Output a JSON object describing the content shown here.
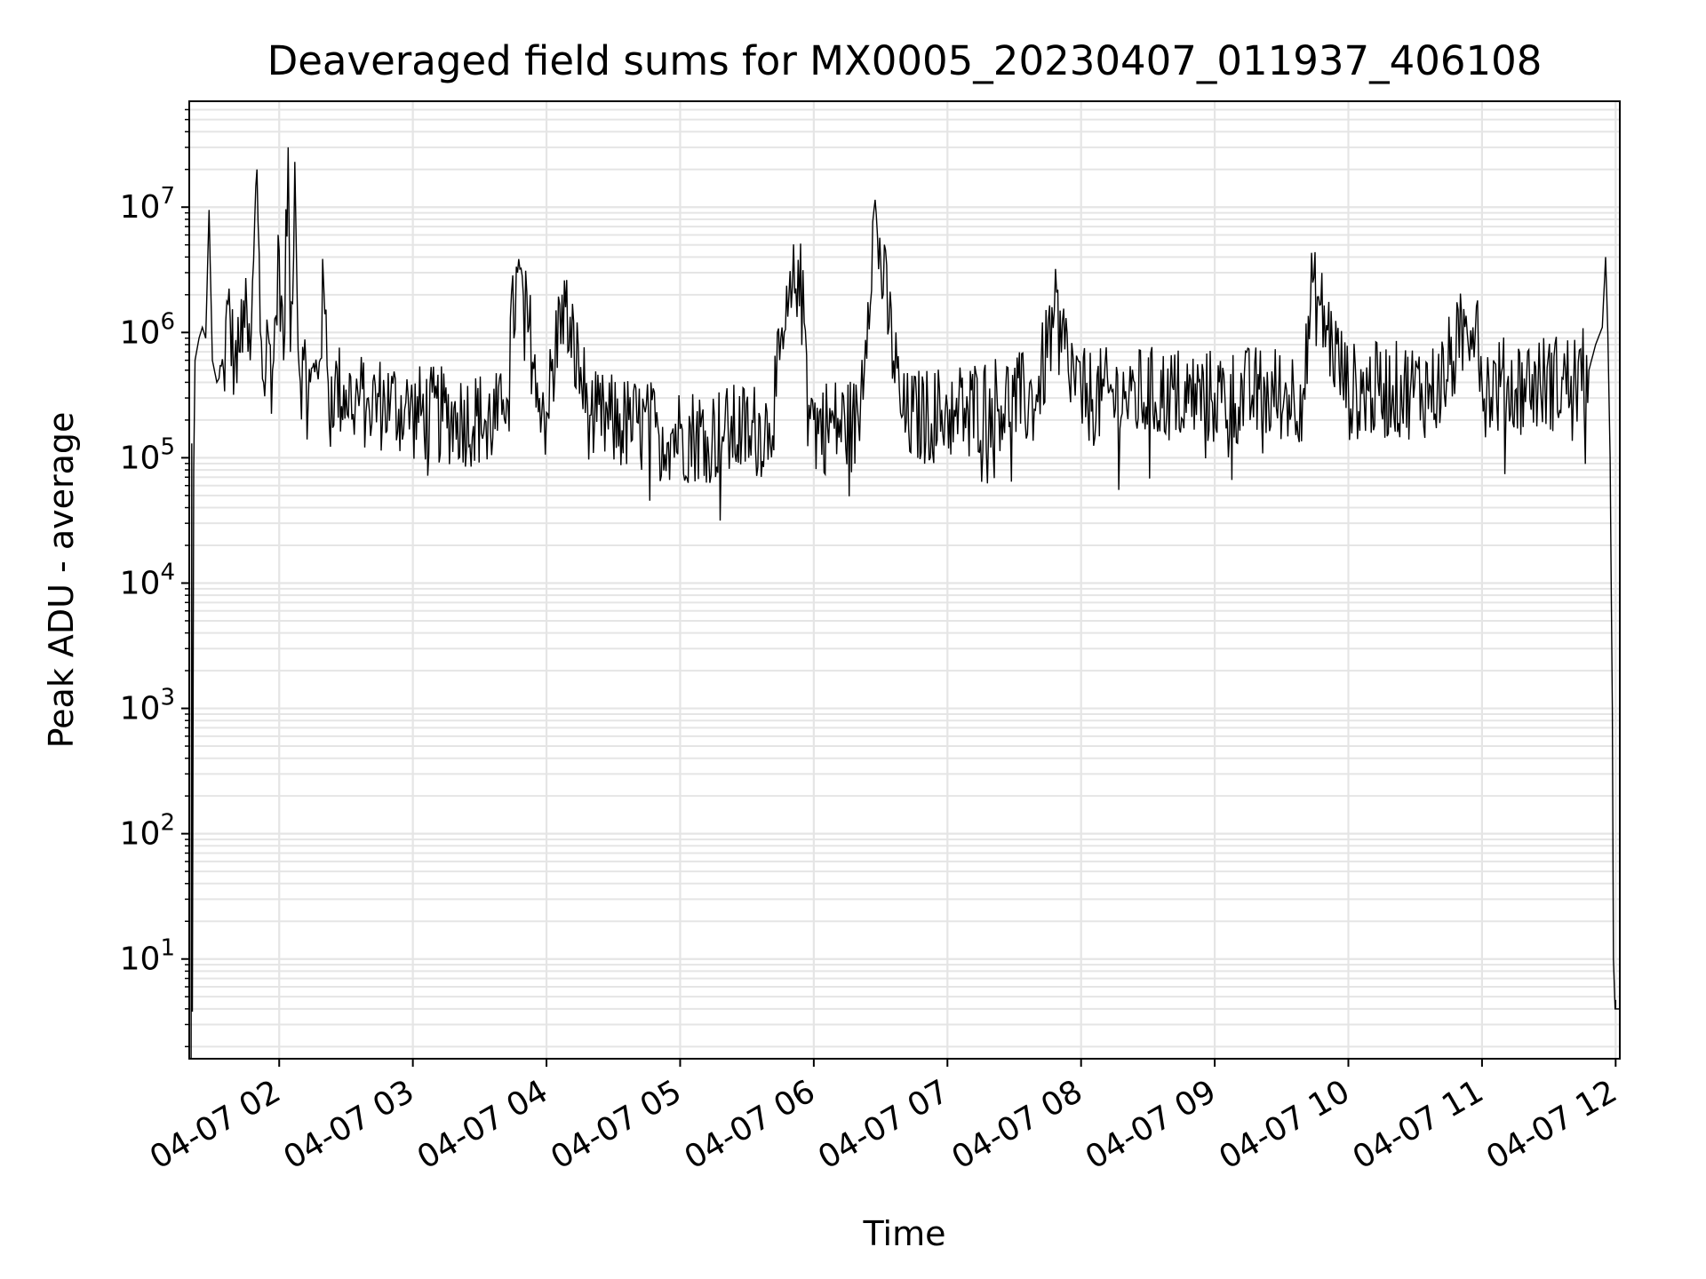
{
  "chart_data": {
    "type": "line",
    "title": "Deaveraged field sums for MX0005_20230407_011937_406108",
    "xlabel": "Time",
    "ylabel": "Peak ADU - average",
    "x_tick_labels": [
      "04-07 02",
      "04-07 03",
      "04-07 04",
      "04-07 05",
      "04-07 06",
      "04-07 07",
      "04-07 08",
      "04-07 09",
      "04-07 10",
      "04-07 11",
      "04-07 12"
    ],
    "x_range": [
      "2023-04-07 01:19:37",
      "2023-04-07 12:01:52"
    ],
    "y_scale": "log",
    "ylim": [
      1.6,
      70000000
    ],
    "y_ticks": [
      {
        "base": "10",
        "exp": "1",
        "value": 10
      },
      {
        "base": "10",
        "exp": "2",
        "value": 100
      },
      {
        "base": "10",
        "exp": "3",
        "value": 1000
      },
      {
        "base": "10",
        "exp": "4",
        "value": 10000
      },
      {
        "base": "10",
        "exp": "5",
        "value": 100000
      },
      {
        "base": "10",
        "exp": "6",
        "value": 1000000
      },
      {
        "base": "10",
        "exp": "7",
        "value": 10000000
      }
    ],
    "grid": true,
    "line_color": "#000000",
    "grid_color": "#e5e5e5",
    "series": [
      {
        "x": [
          "2023-04-07 01:20:27",
          "2023-04-07 01:20:45",
          "2023-04-07 01:21:00",
          "2023-04-07 01:21:36",
          "2023-04-07 01:22:12",
          "2023-04-07 01:24:00",
          "2023-04-07 01:25:30",
          "2023-04-07 01:27:00",
          "2023-04-07 01:28:30",
          "2023-04-07 01:30:00",
          "2023-04-07 01:32:00",
          "2023-04-07 01:35:00",
          "2023-04-07 01:37:00",
          "2023-04-07 01:40:00",
          "2023-04-07 01:42:00",
          "2023-04-07 01:44:00",
          "2023-04-07 01:47:00",
          "2023-04-07 01:50:00",
          "2023-04-07 01:53:00",
          "2023-04-07 01:55:00",
          "2023-04-07 01:57:00",
          "2023-04-07 02:00:00",
          "2023-04-07 02:02:00",
          "2023-04-07 02:04:00",
          "2023-04-07 02:05:00",
          "2023-04-07 02:07:00",
          "2023-04-07 02:09:00",
          "2023-04-07 02:11:00",
          "2023-04-07 02:14:00",
          "2023-04-07 02:17:00",
          "2023-04-07 02:20:00",
          "2023-04-07 02:22:00",
          "2023-04-07 02:25:00",
          "2023-04-07 02:30:00",
          "2023-04-07 02:40:00",
          "2023-04-07 02:50:00",
          "2023-04-07 03:00:00",
          "2023-04-07 03:20:00",
          "2023-04-07 03:40:00",
          "2023-04-07 03:47:00",
          "2023-04-07 04:00:00",
          "2023-04-07 04:07:00",
          "2023-04-07 04:20:00",
          "2023-04-07 04:37:00",
          "2023-04-07 04:50:00",
          "2023-04-07 05:00:00",
          "2023-04-07 05:20:00",
          "2023-04-07 05:40:00",
          "2023-04-07 05:53:00",
          "2023-04-07 06:00:00",
          "2023-04-07 06:20:00",
          "2023-04-07 06:27:00",
          "2023-04-07 06:40:00",
          "2023-04-07 07:00:00",
          "2023-04-07 07:20:00",
          "2023-04-07 07:40:00",
          "2023-04-07 07:48:00",
          "2023-04-07 08:00:00",
          "2023-04-07 08:20:00",
          "2023-04-07 08:40:00",
          "2023-04-07 09:00:00",
          "2023-04-07 09:20:00",
          "2023-04-07 09:40:00",
          "2023-04-07 09:44:00",
          "2023-04-07 10:00:00",
          "2023-04-07 10:20:00",
          "2023-04-07 10:40:00",
          "2023-04-07 10:58:00",
          "2023-04-07 11:00:00",
          "2023-04-07 11:20:00",
          "2023-04-07 11:40:00",
          "2023-04-07 11:48:00",
          "2023-04-07 11:51:00",
          "2023-04-07 11:54:00",
          "2023-04-07 11:55:30",
          "2023-04-07 11:56:30",
          "2023-04-07 11:57:30",
          "2023-04-07 11:58:30",
          "2023-04-07 11:59:00",
          "2023-04-07 11:59:45",
          "2023-04-07 12:01:52"
        ],
        "y": [
          1.6,
          130000,
          3.8,
          80000,
          600000,
          900000,
          1100000,
          900000,
          9500000,
          600000,
          400000,
          500000,
          1700000,
          600000,
          700000,
          1800000,
          600000,
          20000000,
          400000,
          1000000,
          500000,
          4500000,
          600000,
          30000000,
          700000,
          23000000,
          500000,
          600000,
          400000,
          500000,
          2300000,
          400000,
          400000,
          350000,
          300000,
          300000,
          250000,
          230000,
          220000,
          3000000,
          230000,
          2000000,
          220000,
          200000,
          180000,
          170000,
          170000,
          190000,
          3800000,
          200000,
          200000,
          9500000,
          220000,
          250000,
          300000,
          320000,
          1500000,
          330000,
          340000,
          350000,
          330000,
          350000,
          360000,
          2500000,
          370000,
          380000,
          390000,
          1800000,
          400000,
          420000,
          450000,
          500000,
          800000,
          1100000,
          4000000,
          1000000,
          100000,
          1000,
          10,
          4,
          4
        ]
      }
    ]
  }
}
